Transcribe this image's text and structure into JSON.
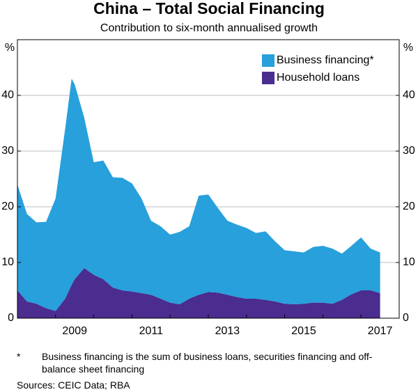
{
  "chart_data": {
    "type": "stacked_area",
    "title": "China – Total Social Financing",
    "subtitle": "Contribution to six-month annualised growth",
    "y_unit": "%",
    "x": [
      2008,
      2008.25,
      2008.5,
      2008.75,
      2009,
      2009.25,
      2009.42,
      2009.5,
      2009.75,
      2010,
      2010.25,
      2010.5,
      2010.75,
      2011,
      2011.25,
      2011.5,
      2011.75,
      2012,
      2012.25,
      2012.5,
      2012.75,
      2013,
      2013.25,
      2013.5,
      2013.75,
      2014,
      2014.25,
      2014.5,
      2014.75,
      2015,
      2015.25,
      2015.5,
      2015.75,
      2016,
      2016.25,
      2016.5,
      2016.75,
      2017,
      2017.25,
      2017.5
    ],
    "series": [
      {
        "name": "Household loans",
        "color": "#4a2d8f",
        "values": [
          5,
          3,
          2.6,
          1.8,
          1.3,
          3.5,
          6,
          7,
          9,
          7.8,
          7,
          5.5,
          5,
          4.8,
          4.5,
          4.2,
          3.5,
          2.8,
          2.5,
          3.5,
          4.2,
          4.7,
          4.6,
          4.2,
          3.8,
          3.5,
          3.5,
          3.3,
          3,
          2.6,
          2.5,
          2.6,
          2.8,
          2.8,
          2.6,
          3.3,
          4.3,
          5,
          5,
          4.5
        ]
      },
      {
        "name": "Business financing*",
        "color": "#27a0dc",
        "values": [
          19,
          15.7,
          14.6,
          15.5,
          20.2,
          30.5,
          37,
          35,
          27,
          20.2,
          21.3,
          19.8,
          20.2,
          19.4,
          17,
          13.3,
          13,
          12.2,
          13,
          13,
          17.8,
          17.5,
          15.2,
          13.3,
          13,
          12.7,
          11.8,
          12.3,
          10.8,
          9.6,
          9.5,
          9.2,
          10,
          10.2,
          9.9,
          8.3,
          8.7,
          9.5,
          7.5,
          7.3
        ]
      }
    ],
    "xlim": [
      2008,
      2018
    ],
    "xticks": [
      {
        "value": 2009.5,
        "label": "2009"
      },
      {
        "value": 2011.5,
        "label": "2011"
      },
      {
        "value": 2013.5,
        "label": "2013"
      },
      {
        "value": 2015.5,
        "label": "2015"
      },
      {
        "value": 2017.5,
        "label": "2017"
      }
    ],
    "ylim": [
      0,
      50
    ],
    "yticks": [
      0,
      10,
      20,
      30,
      40
    ],
    "grid": true,
    "legend": "top-right",
    "footnote_marker": "*",
    "footnote": "Business financing is the sum of business loans, securities financing and off-balance sheet financing",
    "sources": "Sources: CEIC Data; RBA"
  }
}
